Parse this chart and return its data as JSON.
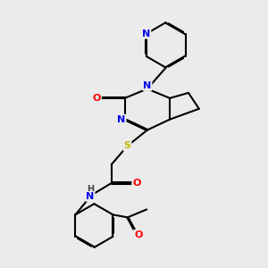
{
  "background_color": "#ebebeb",
  "bond_color": "#000000",
  "atom_colors": {
    "N": "#0000ee",
    "O": "#ff0000",
    "S": "#bbbb00",
    "H": "#555555",
    "C": "#000000"
  },
  "figsize": [
    3.0,
    3.0
  ],
  "dpi": 100
}
